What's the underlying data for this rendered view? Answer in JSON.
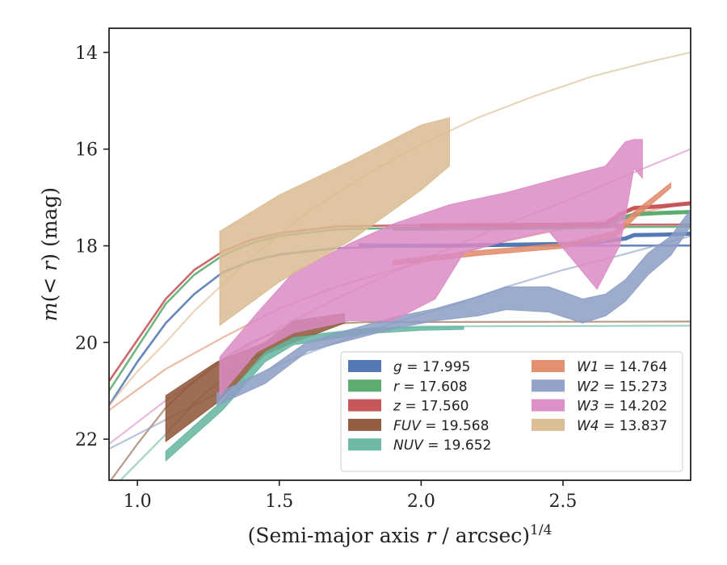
{
  "chart_data": {
    "type": "line",
    "xlabel_main": "(Semi-major axis ",
    "xlabel_var": "r",
    "xlabel_tail": " / arcsec)",
    "xlabel_sup": "1/4",
    "ylabel_m": "m",
    "ylabel_paren": "(< ",
    "ylabel_r": "r",
    "ylabel_close": ") (mag)",
    "xlim": [
      0.9,
      2.95
    ],
    "ylim": [
      22.85,
      13.5
    ],
    "y_inverted": true,
    "xticks": [
      1.0,
      1.5,
      2.0,
      2.5
    ],
    "xtick_labels": [
      "1.0",
      "1.5",
      "2.0",
      "2.5"
    ],
    "yticks": [
      14,
      16,
      18,
      20,
      22
    ],
    "ytick_labels": [
      "14",
      "16",
      "18",
      "20",
      "22"
    ],
    "legend_position": "lower-right",
    "series": [
      {
        "name": "g",
        "value_text": " = 17.995",
        "color": "#4c72b0",
        "style": "band-width-3",
        "band": [
          [
            1.78,
            17.99
          ],
          [
            1.96,
            18.0
          ],
          [
            2.1,
            18.0
          ],
          [
            2.3,
            17.98
          ],
          [
            2.52,
            17.96
          ],
          [
            2.62,
            17.93
          ],
          [
            2.72,
            17.85
          ],
          [
            2.75,
            17.78
          ],
          [
            2.85,
            17.77
          ],
          [
            2.95,
            17.75
          ]
        ],
        "model": [
          [
            0.9,
            21.3
          ],
          [
            1.0,
            20.4
          ],
          [
            1.1,
            19.6
          ],
          [
            1.2,
            19.0
          ],
          [
            1.3,
            18.55
          ],
          [
            1.4,
            18.32
          ],
          [
            1.5,
            18.18
          ],
          [
            1.7,
            18.05
          ],
          [
            2.0,
            18.0
          ],
          [
            2.95,
            17.995
          ]
        ]
      },
      {
        "name": "r",
        "value_text": " = 17.608",
        "color": "#55a868",
        "style": "band-width-3",
        "band": [
          [
            1.9,
            17.65
          ],
          [
            2.1,
            17.64
          ],
          [
            2.3,
            17.63
          ],
          [
            2.5,
            17.62
          ],
          [
            2.65,
            17.6
          ],
          [
            2.7,
            17.45
          ],
          [
            2.75,
            17.35
          ],
          [
            2.85,
            17.32
          ],
          [
            2.95,
            17.3
          ]
        ],
        "model": [
          [
            0.9,
            21.0
          ],
          [
            1.0,
            20.1
          ],
          [
            1.1,
            19.2
          ],
          [
            1.2,
            18.6
          ],
          [
            1.3,
            18.2
          ],
          [
            1.4,
            17.95
          ],
          [
            1.5,
            17.8
          ],
          [
            1.7,
            17.66
          ],
          [
            2.0,
            17.62
          ],
          [
            2.95,
            17.608
          ]
        ]
      },
      {
        "name": "z",
        "value_text": " = 17.560",
        "color": "#c44e52",
        "style": "band-width-3",
        "band": [
          [
            2.0,
            17.58
          ],
          [
            2.3,
            17.57
          ],
          [
            2.5,
            17.56
          ],
          [
            2.65,
            17.55
          ],
          [
            2.7,
            17.35
          ],
          [
            2.75,
            17.22
          ],
          [
            2.85,
            17.18
          ],
          [
            2.95,
            17.12
          ]
        ],
        "model": [
          [
            0.9,
            20.8
          ],
          [
            1.0,
            19.95
          ],
          [
            1.1,
            19.1
          ],
          [
            1.2,
            18.5
          ],
          [
            1.3,
            18.12
          ],
          [
            1.4,
            17.88
          ],
          [
            1.5,
            17.74
          ],
          [
            1.7,
            17.6
          ],
          [
            2.0,
            17.57
          ],
          [
            2.95,
            17.56
          ]
        ]
      },
      {
        "name": "FUV",
        "value_text": " = 19.568",
        "color": "#8c5535",
        "style": "band",
        "band_upper": [
          [
            1.1,
            21.1
          ],
          [
            1.28,
            20.4
          ],
          [
            1.45,
            20.0
          ],
          [
            1.55,
            19.55
          ],
          [
            1.73,
            19.4
          ]
        ],
        "band_lower": [
          [
            1.1,
            22.05
          ],
          [
            1.28,
            21.25
          ],
          [
            1.45,
            20.25
          ],
          [
            1.55,
            20.0
          ],
          [
            1.73,
            19.6
          ]
        ],
        "model": [
          [
            0.9,
            22.9
          ],
          [
            1.0,
            22.1
          ],
          [
            1.1,
            21.35
          ],
          [
            1.2,
            20.8
          ],
          [
            1.3,
            20.35
          ],
          [
            1.4,
            20.0
          ],
          [
            1.5,
            19.75
          ],
          [
            1.6,
            19.64
          ],
          [
            1.8,
            19.58
          ],
          [
            2.95,
            19.568
          ]
        ]
      },
      {
        "name": "NUV",
        "value_text": " = 19.652",
        "color": "#64b5a0",
        "style": "band",
        "band_upper": [
          [
            1.1,
            22.25
          ],
          [
            1.3,
            21.2
          ],
          [
            1.45,
            20.2
          ],
          [
            1.55,
            19.9
          ],
          [
            1.8,
            19.72
          ],
          [
            2.0,
            19.68
          ],
          [
            2.15,
            19.67
          ]
        ],
        "band_lower": [
          [
            1.1,
            22.45
          ],
          [
            1.3,
            21.4
          ],
          [
            1.45,
            20.4
          ],
          [
            1.55,
            20.05
          ],
          [
            1.8,
            19.82
          ],
          [
            2.0,
            19.75
          ],
          [
            2.15,
            19.73
          ]
        ],
        "model": [
          [
            0.94,
            22.85
          ],
          [
            1.1,
            21.9
          ],
          [
            1.2,
            21.25
          ],
          [
            1.3,
            20.75
          ],
          [
            1.4,
            20.35
          ],
          [
            1.5,
            20.05
          ],
          [
            1.6,
            19.85
          ],
          [
            1.8,
            19.72
          ],
          [
            2.0,
            19.67
          ],
          [
            2.95,
            19.652
          ]
        ]
      },
      {
        "name": "W1",
        "value_text": " = 14.764",
        "color": "#e08a68",
        "style": "band",
        "band_upper": [
          [
            1.9,
            18.3
          ],
          [
            2.2,
            18.1
          ],
          [
            2.5,
            17.95
          ],
          [
            2.68,
            17.7
          ],
          [
            2.75,
            17.3
          ],
          [
            2.88,
            16.7
          ]
        ],
        "band_lower": [
          [
            1.9,
            18.4
          ],
          [
            2.2,
            18.2
          ],
          [
            2.5,
            18.05
          ],
          [
            2.68,
            17.85
          ],
          [
            2.75,
            17.45
          ],
          [
            2.88,
            16.8
          ]
        ],
        "model": [
          [
            0.9,
            21.4
          ],
          [
            1.1,
            20.55
          ],
          [
            1.3,
            19.9
          ],
          [
            1.5,
            19.3
          ],
          [
            1.7,
            18.85
          ],
          [
            1.9,
            18.5
          ],
          [
            2.1,
            18.2
          ],
          [
            2.3,
            17.9
          ],
          [
            2.5,
            17.65
          ],
          [
            2.7,
            17.4
          ],
          [
            2.95,
            17.1
          ]
        ]
      },
      {
        "name": "W2",
        "value_text": " = 15.273",
        "color": "#8c9ec4",
        "style": "band",
        "band_upper": [
          [
            1.28,
            21.05
          ],
          [
            1.45,
            20.6
          ],
          [
            1.6,
            19.98
          ],
          [
            1.9,
            19.48
          ],
          [
            2.05,
            19.3
          ],
          [
            2.2,
            19.05
          ],
          [
            2.3,
            18.85
          ],
          [
            2.45,
            18.85
          ],
          [
            2.57,
            19.1
          ],
          [
            2.65,
            19.0
          ],
          [
            2.72,
            18.7
          ],
          [
            2.8,
            18.15
          ],
          [
            2.88,
            17.8
          ],
          [
            2.95,
            17.25
          ]
        ],
        "band_lower": [
          [
            1.28,
            21.3
          ],
          [
            1.45,
            20.85
          ],
          [
            1.6,
            20.18
          ],
          [
            1.9,
            19.72
          ],
          [
            2.05,
            19.55
          ],
          [
            2.2,
            19.45
          ],
          [
            2.3,
            19.32
          ],
          [
            2.45,
            19.37
          ],
          [
            2.57,
            19.6
          ],
          [
            2.65,
            19.45
          ],
          [
            2.72,
            19.15
          ],
          [
            2.8,
            18.6
          ],
          [
            2.88,
            18.2
          ],
          [
            2.95,
            17.6
          ]
        ],
        "model": [
          [
            0.9,
            22.2
          ],
          [
            1.1,
            21.6
          ],
          [
            1.3,
            21.0
          ],
          [
            1.5,
            20.45
          ],
          [
            1.7,
            20.0
          ],
          [
            1.9,
            19.6
          ],
          [
            2.1,
            19.25
          ],
          [
            2.3,
            18.85
          ],
          [
            2.5,
            18.5
          ],
          [
            2.7,
            18.2
          ],
          [
            2.95,
            17.8
          ]
        ]
      },
      {
        "name": "W3",
        "value_text": " = 14.202",
        "color": "#da8bc3",
        "style": "band",
        "band_upper": [
          [
            1.29,
            20.3
          ],
          [
            1.42,
            19.4
          ],
          [
            1.55,
            18.55
          ],
          [
            1.75,
            17.95
          ],
          [
            1.9,
            17.55
          ],
          [
            2.1,
            17.15
          ],
          [
            2.3,
            16.9
          ],
          [
            2.5,
            16.58
          ],
          [
            2.65,
            16.35
          ],
          [
            2.72,
            15.85
          ],
          [
            2.75,
            15.8
          ],
          [
            2.78,
            15.8
          ]
        ],
        "band_lower": [
          [
            1.29,
            21.1
          ],
          [
            1.42,
            20.2
          ],
          [
            1.55,
            19.8
          ],
          [
            1.75,
            19.55
          ],
          [
            1.9,
            19.55
          ],
          [
            2.05,
            19.1
          ],
          [
            2.15,
            18.15
          ],
          [
            2.3,
            17.9
          ],
          [
            2.45,
            17.7
          ],
          [
            2.55,
            18.4
          ],
          [
            2.62,
            18.9
          ],
          [
            2.7,
            18.0
          ],
          [
            2.72,
            17.4
          ],
          [
            2.75,
            16.4
          ],
          [
            2.78,
            16.6
          ]
        ],
        "model": [
          [
            0.9,
            22.1
          ],
          [
            1.1,
            21.2
          ],
          [
            1.3,
            20.4
          ],
          [
            1.5,
            19.7
          ],
          [
            1.7,
            19.1
          ],
          [
            1.9,
            18.55
          ],
          [
            2.1,
            18.05
          ],
          [
            2.3,
            17.55
          ],
          [
            2.5,
            17.1
          ],
          [
            2.7,
            16.6
          ],
          [
            2.95,
            16.0
          ]
        ]
      },
      {
        "name": "W4",
        "value_text": " = 13.837",
        "color": "#d9bb90",
        "style": "band",
        "band_upper": [
          [
            1.29,
            17.7
          ],
          [
            1.5,
            16.95
          ],
          [
            1.75,
            16.25
          ],
          [
            2.0,
            15.5
          ],
          [
            2.1,
            15.35
          ]
        ],
        "band_lower": [
          [
            1.29,
            19.65
          ],
          [
            1.5,
            18.75
          ],
          [
            1.75,
            17.9
          ],
          [
            2.0,
            16.85
          ],
          [
            2.1,
            16.35
          ]
        ],
        "model": [
          [
            0.9,
            21.3
          ],
          [
            1.0,
            20.6
          ],
          [
            1.1,
            20.0
          ],
          [
            1.2,
            19.35
          ],
          [
            1.4,
            18.25
          ],
          [
            1.6,
            17.3
          ],
          [
            1.8,
            16.55
          ],
          [
            2.0,
            15.9
          ],
          [
            2.2,
            15.35
          ],
          [
            2.4,
            14.9
          ],
          [
            2.6,
            14.5
          ],
          [
            2.8,
            14.2
          ],
          [
            2.95,
            14.0
          ]
        ]
      }
    ]
  }
}
